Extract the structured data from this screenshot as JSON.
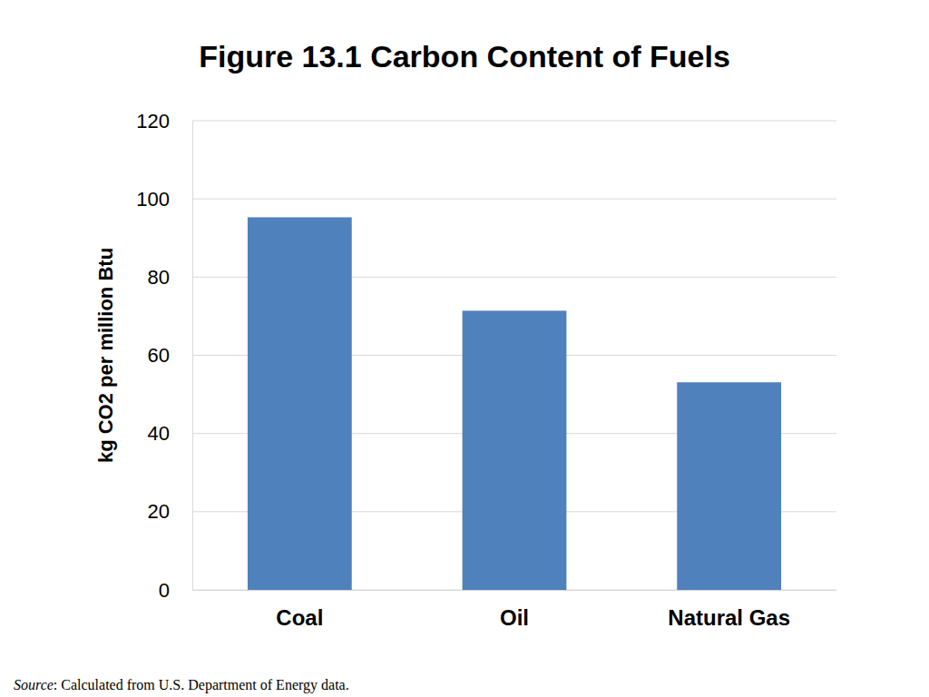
{
  "chart_data": {
    "type": "bar",
    "title": "Figure 13.1 Carbon Content of Fuels",
    "y_label": "kg CO2 per million Btu",
    "note": "Source: Calculated from U.S. Department of Energy data.",
    "categories": [
      "Coal",
      "Oil",
      "Natural Gas"
    ],
    "values": [
      95.3,
      71.4,
      53.1
    ],
    "color": "#4f81bd",
    "ylim": [
      0,
      120
    ],
    "yticks": [
      0,
      20,
      40,
      60,
      80,
      100,
      120
    ],
    "grid": true
  }
}
